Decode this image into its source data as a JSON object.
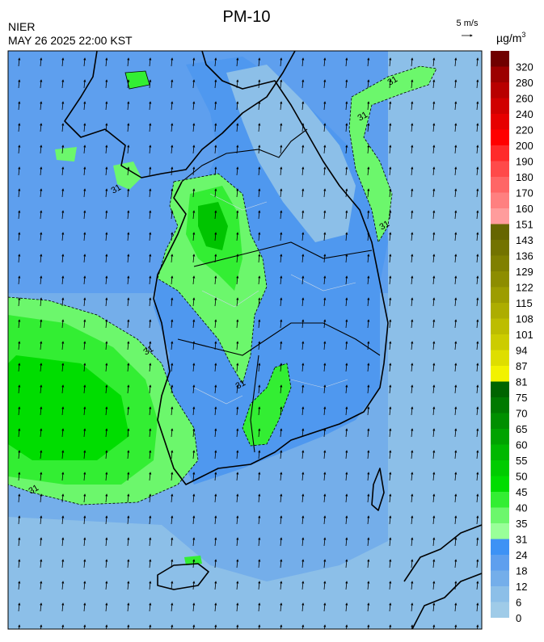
{
  "header": {
    "title": "PM-10",
    "agency": "NIER",
    "timestamp": "MAY 26 2025 22:00 KST",
    "wind_scale": "5 m/s"
  },
  "colorbar": {
    "unit": "µg/m",
    "unit_superscript": "3",
    "levels": [
      0,
      6,
      12,
      18,
      24,
      31,
      35,
      40,
      45,
      50,
      55,
      60,
      65,
      70,
      75,
      81,
      87,
      94,
      101,
      108,
      115,
      122,
      129,
      136,
      143,
      151,
      160,
      170,
      180,
      190,
      200,
      220,
      240,
      260,
      280,
      320
    ],
    "colors": [
      "#9fcbe8",
      "#8cbfe8",
      "#74aeea",
      "#5e9fee",
      "#3d92f5",
      "#99ff99",
      "#6cf76c",
      "#33ee33",
      "#00dd00",
      "#00cc00",
      "#00b800",
      "#00a300",
      "#008f00",
      "#007a00",
      "#006400",
      "#f2f200",
      "#dede00",
      "#cccc00",
      "#bdbd00",
      "#adad00",
      "#9d9d00",
      "#8d8d00",
      "#808000",
      "#737300",
      "#666600",
      "#ff9c9c",
      "#ff8080",
      "#ff6666",
      "#ff4a4a",
      "#ff2a2a",
      "#ff0000",
      "#e60000",
      "#d00000",
      "#b80000",
      "#9c0000",
      "#700000"
    ]
  },
  "map": {
    "contour_labels": [
      "31",
      "31",
      "31",
      "31",
      "31",
      "31",
      "31"
    ]
  }
}
